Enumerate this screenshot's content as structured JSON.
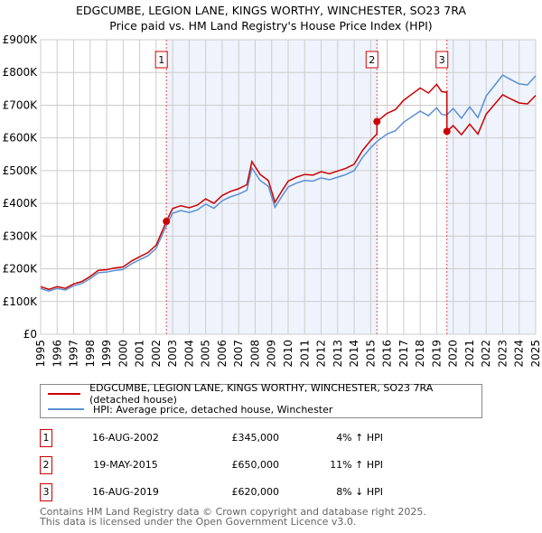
{
  "title_line1": "EDGCUMBE, LEGION LANE, KINGS WORTHY, WINCHESTER, SO23 7RA",
  "title_line2": "Price paid vs. HM Land Registry's House Price Index (HPI)",
  "chart_data": {
    "type": "line",
    "ylim": [
      0,
      900000
    ],
    "xlim": [
      1995,
      2025
    ],
    "y_ticks": [
      "£0",
      "£100K",
      "£200K",
      "£300K",
      "£400K",
      "£500K",
      "£600K",
      "£700K",
      "£800K",
      "£900K"
    ],
    "x_ticks": [
      "1995",
      "1996",
      "1997",
      "1998",
      "1999",
      "2000",
      "2001",
      "2002",
      "2003",
      "2004",
      "2005",
      "2006",
      "2007",
      "2008",
      "2009",
      "2010",
      "2011",
      "2012",
      "2013",
      "2014",
      "2015",
      "2016",
      "2017",
      "2018",
      "2019",
      "2020",
      "2021",
      "2022",
      "2023",
      "2024",
      "2025"
    ],
    "grid": true,
    "colors": {
      "property": "#cc0000",
      "hpi": "#5b8fd4",
      "shade": "#eef3fc"
    },
    "hpi_series": {
      "name": "HPI: Average price, detached house, Winchester",
      "x": [
        1995,
        1995.5,
        1996,
        1996.5,
        1997,
        1997.5,
        1998,
        1998.5,
        1999,
        1999.5,
        2000,
        2000.5,
        2001,
        2001.5,
        2002,
        2002.6,
        2003,
        2003.5,
        2004,
        2004.5,
        2005,
        2005.5,
        2006,
        2006.5,
        2007,
        2007.5,
        2007.8,
        2008.3,
        2008.8,
        2009.2,
        2009.6,
        2010,
        2010.5,
        2011,
        2011.5,
        2012,
        2012.5,
        2013,
        2013.5,
        2014,
        2014.5,
        2015,
        2015.4,
        2016,
        2016.5,
        2017,
        2017.5,
        2018,
        2018.5,
        2019,
        2019.3,
        2019.6,
        2020,
        2020.5,
        2021,
        2021.5,
        2022,
        2022.5,
        2023,
        2023.5,
        2024,
        2024.5,
        2025
      ],
      "y": [
        140000,
        132000,
        140000,
        135000,
        148000,
        155000,
        170000,
        188000,
        190000,
        195000,
        198000,
        215000,
        228000,
        240000,
        262000,
        330000,
        370000,
        378000,
        372000,
        380000,
        398000,
        385000,
        408000,
        420000,
        428000,
        440000,
        508000,
        470000,
        452000,
        388000,
        420000,
        450000,
        462000,
        470000,
        468000,
        478000,
        472000,
        480000,
        488000,
        500000,
        540000,
        570000,
        590000,
        612000,
        622000,
        648000,
        665000,
        682000,
        668000,
        692000,
        672000,
        670000,
        690000,
        660000,
        695000,
        662000,
        728000,
        760000,
        792000,
        778000,
        765000,
        762000,
        790000
      ]
    },
    "sales": [
      {
        "label": "1",
        "date": "16-AUG-2002",
        "x": 2002.62,
        "price": 345000,
        "price_text": "£345,000",
        "hpi_text": "4% ↑ HPI"
      },
      {
        "label": "2",
        "date": "19-MAY-2015",
        "x": 2015.38,
        "price": 650000,
        "price_text": "£650,000",
        "hpi_text": "11% ↑ HPI"
      },
      {
        "label": "3",
        "date": "16-AUG-2019",
        "x": 2019.62,
        "price": 620000,
        "price_text": "£620,000",
        "hpi_text": "8% ↓ HPI"
      }
    ],
    "property_series_name": "EDGCUMBE, LEGION LANE, KINGS WORTHY, WINCHESTER, SO23 7RA (detached house)"
  },
  "footer_line1": "Contains HM Land Registry data © Crown copyright and database right 2025.",
  "footer_line2": "This data is licensed under the Open Government Licence v3.0."
}
